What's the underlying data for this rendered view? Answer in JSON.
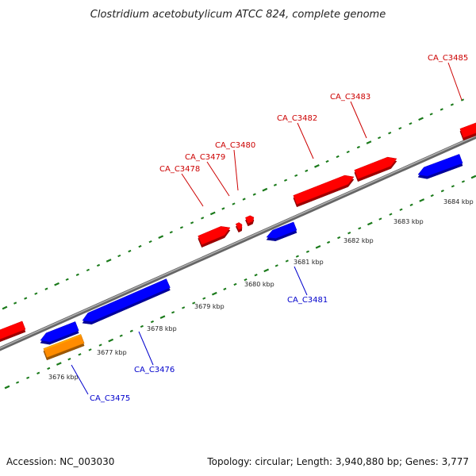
{
  "title": "Clostridium acetobutylicum ATCC 824, complete genome",
  "footer": {
    "accession": "Accession: NC_003030",
    "summary": "Topology: circular; Length: 3,940,880 bp; Genes: 3,777"
  },
  "colors": {
    "forward_gene": "#ff0000",
    "reverse_gene": "#0000ff",
    "rna_gene": "#ff8c00",
    "backbone": "#888888",
    "tick": "#1a7a1a",
    "forward_label": "#cc0000",
    "reverse_label": "#0000cc"
  },
  "scale_labels": [
    {
      "key": "kb-3676",
      "text": "3676 kbp"
    },
    {
      "key": "kb-3677",
      "text": "3677 kbp"
    },
    {
      "key": "kb-3678",
      "text": "3678 kbp"
    },
    {
      "key": "kb-3679",
      "text": "3679 kbp"
    },
    {
      "key": "kb-3680",
      "text": "3680 kbp"
    },
    {
      "key": "kb-3681",
      "text": "3681 kbp"
    },
    {
      "key": "kb-3682",
      "text": "3682 kbp"
    },
    {
      "key": "kb-3683",
      "text": "3683 kbp"
    },
    {
      "key": "kb-3684",
      "text": "3684 kbp"
    }
  ],
  "genes": [
    {
      "key": "ca-c3475",
      "label": "CA_C3475",
      "strand": "reverse"
    },
    {
      "key": "ca-c3476",
      "label": "CA_C3476",
      "strand": "reverse"
    },
    {
      "key": "ca-c3478",
      "label": "CA_C3478",
      "strand": "forward"
    },
    {
      "key": "ca-c3479",
      "label": "CA_C3479",
      "strand": "forward"
    },
    {
      "key": "ca-c3480",
      "label": "CA_C3480",
      "strand": "forward"
    },
    {
      "key": "ca-c3481",
      "label": "CA_C3481",
      "strand": "reverse"
    },
    {
      "key": "ca-c3482",
      "label": "CA_C3482",
      "strand": "forward"
    },
    {
      "key": "ca-c3483",
      "label": "CA_C3483",
      "strand": "forward"
    },
    {
      "key": "ca-c3485",
      "label": "CA_C3485",
      "strand": "forward"
    }
  ]
}
